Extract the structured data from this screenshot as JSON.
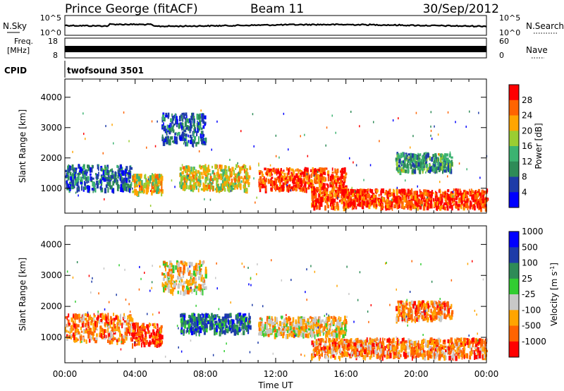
{
  "header": {
    "station": "Prince George (fitACF)",
    "beam": "Beam 11",
    "date": "30/Sep/2012"
  },
  "strip": {
    "nsky_label": "N.Sky",
    "nsearch_label": "N.Search",
    "nsky_ticks": [
      "10^5",
      "10^0"
    ],
    "nsearch_ticks": [
      "10^5",
      "10^0"
    ],
    "freq_label_top": "Freq.",
    "freq_label_unit": "[MHz]",
    "freq_ticks": [
      "18",
      "8"
    ],
    "nave_label": "Nave",
    "nave_ticks": [
      "60",
      "0"
    ],
    "cpid_label": "CPID",
    "cpid_value": "twofsound 3501"
  },
  "colors": {
    "power": [
      "#0000ff",
      "#1e3ca8",
      "#2e8b57",
      "#3cb371",
      "#9acd32",
      "#ffa500",
      "#ff6400",
      "#ff0000"
    ],
    "velocity": [
      "#ff0000",
      "#ff6400",
      "#ffa500",
      "#c8c8c8",
      "#32cd32",
      "#2e8b57",
      "#1e3ca8",
      "#0000ff"
    ]
  },
  "chart_data": [
    {
      "type": "heatmap",
      "parameter": "power",
      "ylabel": "Slant Range [km]",
      "ylim": [
        180,
        4600
      ],
      "yticks": [
        1000,
        2000,
        3000,
        4000
      ],
      "xlim": [
        0,
        24
      ],
      "xticks": [
        "00:00",
        "04:00",
        "08:00",
        "12:00",
        "16:00",
        "20:00",
        "00:00"
      ],
      "colorbar_label": "Power [dB]",
      "colorbar_ticks": [
        "4",
        "8",
        "12",
        "16",
        "20",
        "24",
        "28"
      ],
      "colorbar_range": [
        0,
        32
      ],
      "echo_regions": [
        {
          "t": [
            0,
            3.8
          ],
          "r": [
            1000,
            1800
          ],
          "dominant": 8
        },
        {
          "t": [
            3.8,
            5.5
          ],
          "r": [
            900,
            1500
          ],
          "dominant": 20
        },
        {
          "t": [
            6.5,
            10.5
          ],
          "r": [
            1000,
            1800
          ],
          "dominant": 20
        },
        {
          "t": [
            11,
            16
          ],
          "r": [
            1000,
            1700
          ],
          "dominant": 28
        },
        {
          "t": [
            14,
            24
          ],
          "r": [
            400,
            1000
          ],
          "dominant": 28
        },
        {
          "t": [
            18.8,
            22
          ],
          "r": [
            1600,
            2200
          ],
          "dominant": 12
        },
        {
          "t": [
            5.5,
            8
          ],
          "r": [
            2500,
            3500
          ],
          "dominant": 8
        }
      ]
    },
    {
      "type": "heatmap",
      "parameter": "velocity",
      "ylabel": "Slant Range [km]",
      "ylim": [
        180,
        4600
      ],
      "yticks": [
        1000,
        2000,
        3000,
        4000
      ],
      "xlim": [
        0,
        24
      ],
      "xticks": [
        "00:00",
        "04:00",
        "08:00",
        "12:00",
        "16:00",
        "20:00",
        "00:00"
      ],
      "xlabel": "Time UT",
      "colorbar_label": "Velocity [m s^-1]",
      "colorbar_ticks": [
        "-1000",
        "-500",
        "-100",
        "-25",
        "25",
        "100",
        "500",
        "1000"
      ],
      "echo_regions": [
        {
          "t": [
            0,
            3.8
          ],
          "r": [
            900,
            1800
          ],
          "dominant": -100
        },
        {
          "t": [
            3.8,
            5.5
          ],
          "r": [
            800,
            1500
          ],
          "dominant": -500
        },
        {
          "t": [
            6.5,
            10.5
          ],
          "r": [
            1200,
            1800
          ],
          "dominant": 100
        },
        {
          "t": [
            11,
            16
          ],
          "r": [
            1100,
            1700
          ],
          "dominant": 25
        },
        {
          "t": [
            14,
            24
          ],
          "r": [
            400,
            1000
          ],
          "dominant": -100
        },
        {
          "t": [
            18.8,
            22
          ],
          "r": [
            1600,
            2200
          ],
          "dominant": -100
        },
        {
          "t": [
            5.5,
            8
          ],
          "r": [
            2500,
            3500
          ],
          "dominant": 0
        }
      ]
    }
  ]
}
